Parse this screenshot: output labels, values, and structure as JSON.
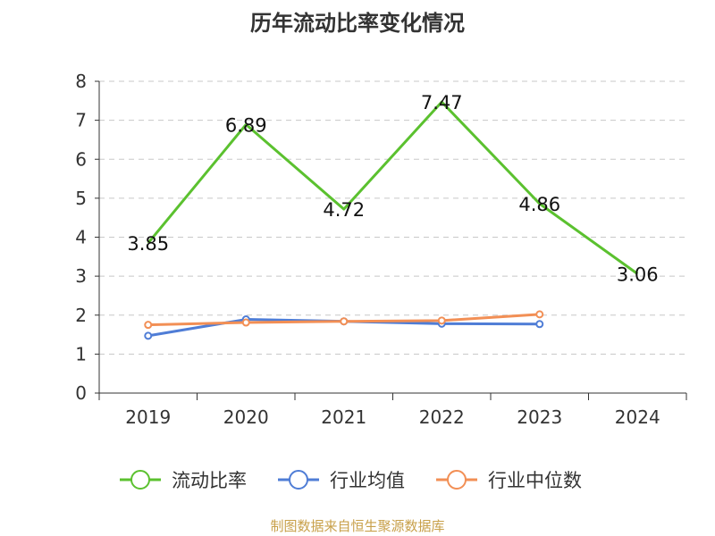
{
  "chart_data": {
    "type": "line",
    "title": "历年流动比率变化情况",
    "categories": [
      "2019",
      "2020",
      "2021",
      "2022",
      "2023",
      "2024"
    ],
    "ylim": [
      0,
      8
    ],
    "yticks": [
      0,
      1,
      2,
      3,
      4,
      5,
      6,
      7,
      8
    ],
    "grid": true,
    "legend_position": "bottom",
    "series": [
      {
        "name": "流动比率",
        "color": "#5bc12f",
        "values": [
          3.85,
          6.89,
          4.72,
          7.47,
          4.86,
          3.06
        ],
        "labels": [
          "3.85",
          "6.89",
          "4.72",
          "7.47",
          "4.86",
          "3.06"
        ],
        "markers": false
      },
      {
        "name": "行业均值",
        "color": "#4f7dd6",
        "values": [
          1.47,
          1.89,
          1.84,
          1.78,
          1.77,
          null
        ],
        "markers": true
      },
      {
        "name": "行业中位数",
        "color": "#f28f55",
        "values": [
          1.75,
          1.81,
          1.84,
          1.86,
          2.02,
          null
        ],
        "markers": true
      }
    ]
  },
  "source": "制图数据来自恒生聚源数据库"
}
